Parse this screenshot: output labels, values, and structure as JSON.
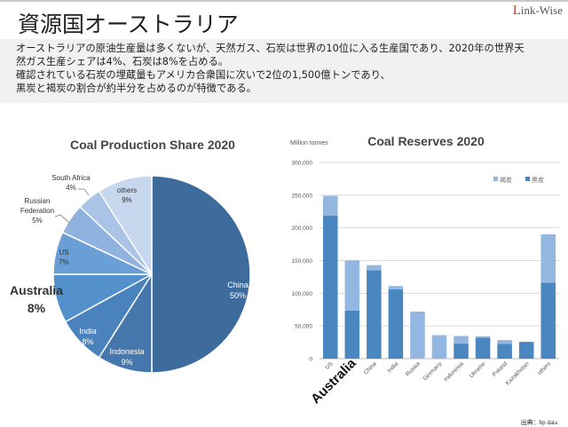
{
  "header": {
    "title": "資源国オーストラリア",
    "logo": "Link-Wise"
  },
  "description": {
    "lines": [
      "オーストラリアの原油生産量は多くないが、天然ガス、石炭は世界の10位に入る生産国であり、2020年の世界天",
      "然ガス生産シェアは4%、石炭は8%を占める。",
      "確認されている石炭の埋蔵量もアメリカ合衆国に次いで2位の1,500億トンであり、",
      "黒炭と褐炭の割合が約半分を占めるのが特徴である。"
    ]
  },
  "source": "出典：bp data",
  "chart_data": [
    {
      "type": "pie",
      "title": "Coal Production Share 2020",
      "slices": [
        {
          "label": "China",
          "value": 50,
          "text": "50%",
          "color": "#3d6b9b"
        },
        {
          "label": "Indonesia",
          "value": 9,
          "text": "9%",
          "color": "#4577ad"
        },
        {
          "label": "India",
          "value": 8,
          "text": "8%",
          "color": "#4a82bd"
        },
        {
          "label": "Australia",
          "value": 8,
          "text": "8%",
          "color": "#5390cc"
        },
        {
          "label": "US",
          "value": 7,
          "text": "7%",
          "color": "#6a9fd6"
        },
        {
          "label": "Russian Federation",
          "value": 5,
          "text": "5%",
          "color": "#8fb3de"
        },
        {
          "label": "South Africa",
          "value": 4,
          "text": "4%",
          "color": "#a9c4e6"
        },
        {
          "label": "others",
          "value": 9,
          "text": "9%",
          "color": "#c6d7ee"
        }
      ]
    },
    {
      "type": "bar",
      "stacked": true,
      "title": "Coal Reserves 2020",
      "ylabel": "Million tonnes",
      "ylim": [
        0,
        300000
      ],
      "yticks": [
        "0",
        "50,000",
        "100,000",
        "150,000",
        "200,000",
        "250,000",
        "300,000"
      ],
      "categories": [
        "US",
        "Australia",
        "China",
        "India",
        "Russia",
        "Germany",
        "Indonesia",
        "Ukraine",
        "Poland",
        "Kazakhstan",
        "others"
      ],
      "legend_position": "top-right",
      "series": [
        {
          "name": "黒炭",
          "color": "#4a86c0",
          "values": [
            219000,
            73700,
            135000,
            106000,
            0,
            0,
            23000,
            32000,
            22500,
            25600,
            116000
          ]
        },
        {
          "name": "褐炭",
          "color": "#93b7e0",
          "values": [
            30000,
            76500,
            8000,
            5000,
            72000,
            35900,
            11700,
            2300,
            5900,
            0,
            74000
          ]
        }
      ]
    }
  ]
}
